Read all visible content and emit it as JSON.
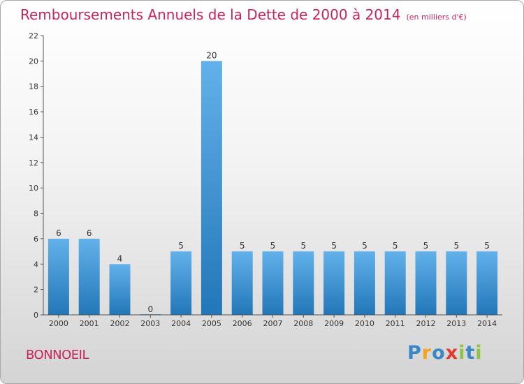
{
  "title": "Remboursements Annuels de la Dette de 2000 à 2014",
  "subtitle": "(en milliers d'€)",
  "commune": "BONNOEIL",
  "brand": {
    "letters": [
      "P",
      "r",
      "o",
      "x",
      "i",
      "t",
      "i"
    ],
    "colors": [
      "#3a87c8",
      "#f7a21b",
      "#3a87c8",
      "#e23a2f",
      "#8cc63f",
      "#3a87c8",
      "#8cc63f"
    ]
  },
  "colors": {
    "accent": "#c8245a",
    "bar_light": "#62b1ea",
    "bar_dark": "#2277b8"
  },
  "chart_data": {
    "type": "bar",
    "categories": [
      "2000",
      "2001",
      "2002",
      "2003",
      "2004",
      "2005",
      "2006",
      "2007",
      "2008",
      "2009",
      "2010",
      "2011",
      "2012",
      "2013",
      "2014"
    ],
    "values": [
      6,
      6,
      4,
      0,
      5,
      20,
      5,
      5,
      5,
      5,
      5,
      5,
      5,
      5,
      5
    ],
    "data_labels": [
      "6",
      "6",
      "4",
      "0",
      "5",
      "20",
      "5",
      "5",
      "5",
      "5",
      "5",
      "5",
      "5",
      "5",
      "5"
    ],
    "ylim": [
      0,
      22
    ],
    "yticks": [
      0,
      2,
      4,
      6,
      8,
      10,
      12,
      14,
      16,
      18,
      20,
      22
    ],
    "ytick_labels": [
      "0",
      "2",
      "4",
      "6",
      "8",
      "10",
      "12",
      "14",
      "16",
      "18",
      "20",
      "22"
    ],
    "grid": false,
    "xlabel": "",
    "ylabel": ""
  }
}
